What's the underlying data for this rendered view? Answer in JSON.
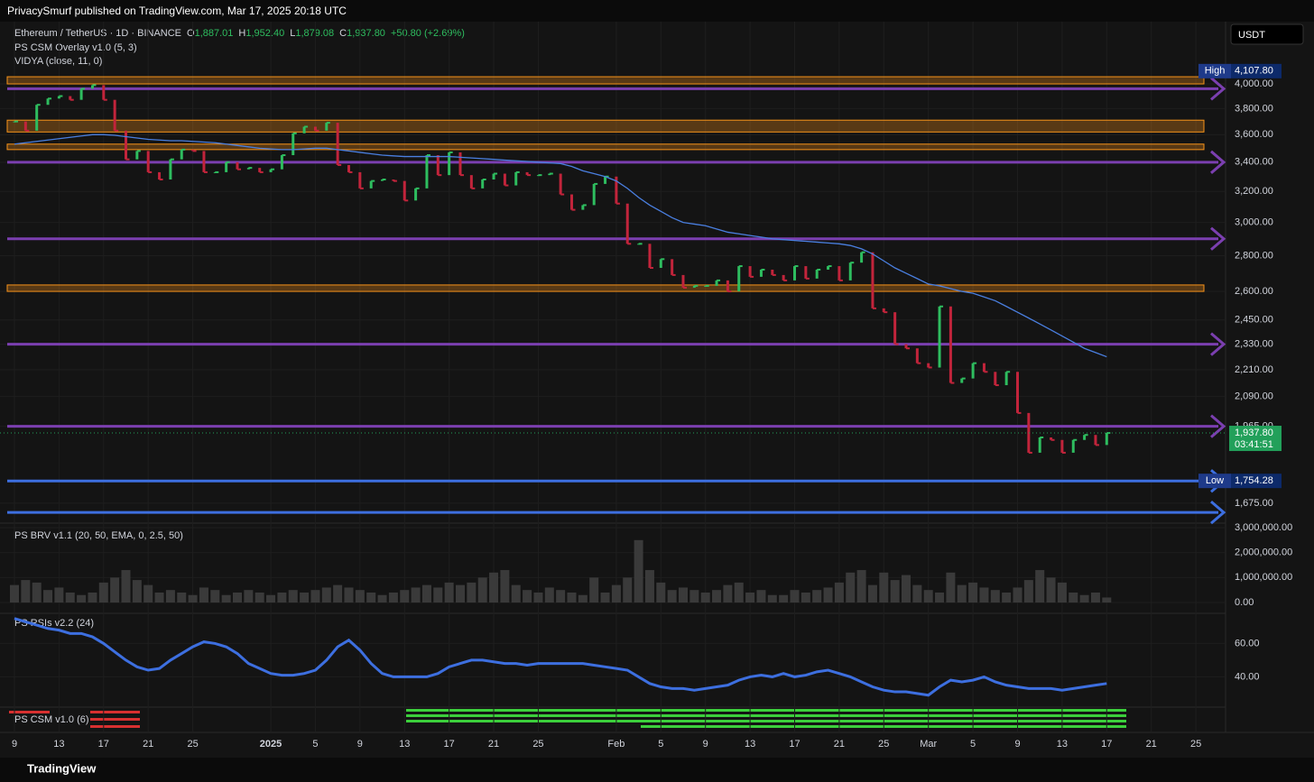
{
  "header": {
    "publisher": "PrivacySmurf published on TradingView.com, Mar 17, 2025 20:18 UTC",
    "footer": "TradingView"
  },
  "legend": {
    "symbol": "Ethereum / TetherUS · 1D · BINANCE",
    "ohlc": [
      {
        "key": "O",
        "value": "1,887.01"
      },
      {
        "key": "H",
        "value": "1,952.40"
      },
      {
        "key": "L",
        "value": "1,879.08"
      },
      {
        "key": "C",
        "value": "1,937.80"
      }
    ],
    "change": "+50.80 (+2.69%)",
    "indicators": [
      "PS CSM Overlay v1.0 (5, 3)",
      "VIDYA (close, 11, 0)"
    ],
    "currency": "USDT"
  },
  "chart_data": [
    {
      "type": "candles",
      "title": "Ethereum / TetherUS",
      "log": true,
      "ylim": [
        1607,
        4552
      ],
      "categories": [
        "9",
        null,
        null,
        null,
        "13",
        null,
        null,
        null,
        "17",
        null,
        null,
        null,
        "21",
        null,
        null,
        null,
        "25",
        null,
        null,
        null,
        null,
        null,
        null,
        "2025",
        null,
        null,
        null,
        "5",
        null,
        null,
        null,
        "9",
        null,
        null,
        null,
        "13",
        null,
        null,
        null,
        "17",
        null,
        null,
        null,
        "21",
        null,
        null,
        null,
        "25",
        null,
        null,
        null,
        null,
        null,
        null,
        "Feb",
        null,
        null,
        null,
        "5",
        null,
        null,
        null,
        "9",
        null,
        null,
        null,
        "13",
        null,
        null,
        null,
        "17",
        null,
        null,
        null,
        "21",
        null,
        null,
        null,
        "25",
        null,
        null,
        null,
        "Mar",
        null,
        null,
        null,
        "5",
        null,
        null,
        null,
        "9",
        null,
        null,
        null,
        "13",
        null,
        null,
        null,
        "17",
        null,
        null,
        null,
        "21",
        null,
        null,
        null,
        "25"
      ],
      "yticks": [
        {
          "value": 4000,
          "label": "4,000.00"
        },
        {
          "value": 3800,
          "label": "3,800.00"
        },
        {
          "value": 3600,
          "label": "3,600.00"
        },
        {
          "value": 3400,
          "label": "3,400.00"
        },
        {
          "value": 3200,
          "label": "3,200.00"
        },
        {
          "value": 3000,
          "label": "3,000.00"
        },
        {
          "value": 2800,
          "label": "2,800.00"
        },
        {
          "value": 2600,
          "label": "2,600.00"
        },
        {
          "value": 2450,
          "label": "2,450.00"
        },
        {
          "value": 2330,
          "label": "2,330.00"
        },
        {
          "value": 2210,
          "label": "2,210.00"
        },
        {
          "value": 2090,
          "label": "2,090.00"
        },
        {
          "value": 1965,
          "label": "1,965.00"
        },
        {
          "value": 1675,
          "label": "1,675.00"
        }
      ],
      "series": [
        {
          "name": "Close",
          "color_up": "#2ebd5f",
          "color_down": "#c2243b",
          "values": [
            3700,
            3630,
            3830,
            3880,
            3900,
            3870,
            3960,
            3990,
            3870,
            3630,
            3420,
            3480,
            3330,
            3280,
            3420,
            3490,
            3480,
            3330,
            3330,
            3400,
            3350,
            3360,
            3330,
            3350,
            3450,
            3610,
            3660,
            3630,
            3690,
            3380,
            3330,
            3220,
            3270,
            3280,
            3270,
            3140,
            3220,
            3450,
            3310,
            3470,
            3310,
            3220,
            3280,
            3320,
            3240,
            3330,
            3310,
            3310,
            3320,
            3180,
            3080,
            3110,
            3250,
            3300,
            3120,
            2870,
            2870,
            2730,
            2780,
            2690,
            2620,
            2630,
            2630,
            2660,
            2600,
            2740,
            2680,
            2720,
            2690,
            2660,
            2740,
            2670,
            2720,
            2740,
            2660,
            2760,
            2820,
            2510,
            2490,
            2330,
            2310,
            2240,
            2220,
            2520,
            2150,
            2170,
            2240,
            2200,
            2140,
            2200,
            2020,
            1860,
            1920,
            1910,
            1860,
            1910,
            1930,
            1890,
            1937.8,
            null,
            null,
            null,
            null,
            null,
            null,
            null,
            null
          ]
        },
        {
          "name": "VIDYA",
          "color": "#4a7fe0",
          "values": [
            3530,
            3540,
            3550,
            3560,
            3570,
            3580,
            3590,
            3600,
            3600,
            3595,
            3585,
            3575,
            3565,
            3560,
            3555,
            3555,
            3550,
            3545,
            3540,
            3530,
            3520,
            3510,
            3500,
            3495,
            3490,
            3490,
            3495,
            3500,
            3500,
            3490,
            3480,
            3470,
            3460,
            3450,
            3445,
            3440,
            3440,
            3440,
            3440,
            3440,
            3435,
            3430,
            3425,
            3420,
            3415,
            3410,
            3405,
            3400,
            3395,
            3390,
            3370,
            3340,
            3320,
            3300,
            3270,
            3220,
            3160,
            3110,
            3070,
            3030,
            3000,
            2990,
            2980,
            2960,
            2940,
            2930,
            2920,
            2910,
            2900,
            2895,
            2890,
            2885,
            2880,
            2875,
            2870,
            2860,
            2840,
            2810,
            2770,
            2730,
            2700,
            2670,
            2640,
            2630,
            2615,
            2600,
            2590,
            2570,
            2550,
            2520,
            2490,
            2460,
            2430,
            2400,
            2370,
            2340,
            2310,
            2290,
            2270,
            null,
            null,
            null,
            null,
            null,
            null,
            null,
            null
          ]
        }
      ],
      "levels": [
        {
          "value": 3960,
          "color": "#7b3fb0"
        },
        {
          "value": 3400,
          "color": "#7b3fb0"
        },
        {
          "value": 2900,
          "color": "#7b3fb0"
        },
        {
          "value": 2330,
          "color": "#7b3fb0"
        },
        {
          "value": 1965,
          "color": "#7b3fb0"
        },
        {
          "value": 1754,
          "color": "#3d6fe0"
        },
        {
          "value": 1643,
          "color": "#3d6fe0"
        }
      ],
      "zones": [
        {
          "low": 4000,
          "high": 4060,
          "color": "#f7931a"
        },
        {
          "low": 3620,
          "high": 3710,
          "color": "#f7931a"
        },
        {
          "low": 3490,
          "high": 3530,
          "color": "#f7931a"
        },
        {
          "low": 2600,
          "high": 2635,
          "color": "#f7931a"
        }
      ],
      "tags": [
        {
          "name": "High",
          "price": {
            "value": 4107.8,
            "label": "4,107.80"
          },
          "color": "#1e3a8a"
        },
        {
          "name": "Low",
          "price": {
            "value": 1754.28,
            "label": "1,754.28"
          },
          "color": "#1e3a8a"
        }
      ],
      "last": {
        "price": {
          "value": 1937.8,
          "label": "1,937.80"
        },
        "countdown": "03:41:51",
        "color": "#22a05a"
      }
    },
    {
      "type": "bar",
      "title": "PS BRV v1.1 (20, 50, EMA, 0, 2.5, 50)",
      "color": "#3a3a3a",
      "ylim": [
        0,
        3000000
      ],
      "yticks": [
        {
          "value": 3000000,
          "label": "3,000,000.00"
        },
        {
          "value": 2000000,
          "label": "2,000,000.00"
        },
        {
          "value": 1000000,
          "label": "1,000,000.00"
        },
        {
          "value": 0,
          "label": "0.00"
        }
      ],
      "values": [
        700000,
        900000,
        800000,
        500000,
        600000,
        400000,
        300000,
        400000,
        800000,
        1000000,
        1300000,
        900000,
        700000,
        400000,
        500000,
        400000,
        300000,
        600000,
        500000,
        300000,
        400000,
        500000,
        400000,
        300000,
        400000,
        500000,
        400000,
        500000,
        600000,
        700000,
        600000,
        500000,
        400000,
        300000,
        400000,
        500000,
        600000,
        700000,
        600000,
        800000,
        700000,
        800000,
        1000000,
        1200000,
        1300000,
        700000,
        500000,
        400000,
        600000,
        500000,
        400000,
        300000,
        1000000,
        400000,
        700000,
        1000000,
        2500000,
        1300000,
        800000,
        500000,
        600000,
        500000,
        400000,
        500000,
        700000,
        800000,
        400000,
        500000,
        300000,
        300000,
        500000,
        400000,
        500000,
        600000,
        800000,
        1200000,
        1300000,
        700000,
        1200000,
        900000,
        1100000,
        700000,
        500000,
        400000,
        1200000,
        700000,
        800000,
        600000,
        500000,
        400000,
        600000,
        900000,
        1300000,
        1000000,
        800000,
        400000,
        300000,
        400000,
        200000,
        null,
        null,
        null,
        null,
        null,
        null,
        null,
        null
      ]
    },
    {
      "type": "line",
      "title": "PS RSIs v2.2 (24)",
      "color": "#3d6fe0",
      "ylim": [
        24,
        77
      ],
      "yticks": [
        {
          "value": 60,
          "label": "60.00"
        },
        {
          "value": 40,
          "label": "40.00"
        }
      ],
      "values": [
        75,
        73,
        71,
        69,
        68,
        66,
        66,
        64,
        60,
        55,
        50,
        46,
        44,
        45,
        50,
        54,
        58,
        61,
        60,
        58,
        54,
        48,
        45,
        42,
        41,
        41,
        42,
        44,
        50,
        58,
        62,
        56,
        48,
        42,
        40,
        40,
        40,
        40,
        42,
        46,
        48,
        50,
        50,
        49,
        48,
        48,
        47,
        48,
        48,
        48,
        48,
        48,
        47,
        46,
        45,
        44,
        40,
        36,
        34,
        33,
        33,
        32,
        33,
        34,
        35,
        38,
        40,
        41,
        40,
        42,
        40,
        41,
        43,
        44,
        42,
        40,
        37,
        34,
        32,
        31,
        31,
        30,
        29,
        34,
        38,
        37,
        38,
        40,
        37,
        35,
        34,
        33,
        33,
        33,
        32,
        33,
        34,
        35,
        36,
        null,
        null,
        null,
        null,
        null,
        null,
        null,
        null
      ]
    },
    {
      "type": "strip",
      "title": "PS CSM v1.0 (6)"
    }
  ]
}
